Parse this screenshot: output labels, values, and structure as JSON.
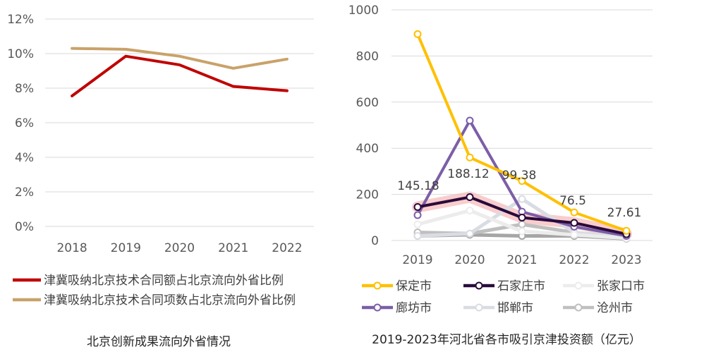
{
  "chart_data": [
    {
      "type": "line",
      "title": "北京创新成果流向外省情况",
      "x": [
        "2018",
        "2019",
        "2020",
        "2021",
        "2022"
      ],
      "ylim": [
        0,
        12
      ],
      "yticks": [
        "0%",
        "2%",
        "4%",
        "6%",
        "8%",
        "10%",
        "12%"
      ],
      "grid": true,
      "legend_position": "bottom",
      "series": [
        {
          "name": "津冀吸纳北京技术合同额占北京流向外省比例",
          "color": "#c00000",
          "values": [
            7.55,
            9.85,
            9.35,
            8.1,
            7.85
          ]
        },
        {
          "name": "津冀吸纳北京技术合同项数占北京流向外省比例",
          "color": "#c9a26a",
          "values": [
            10.3,
            10.25,
            9.85,
            9.15,
            9.68
          ]
        }
      ]
    },
    {
      "type": "line",
      "title": "2019-2023年河北省各市吸引京津投资额（亿元）",
      "x": [
        "2019",
        "2020",
        "2021",
        "2022",
        "2023"
      ],
      "ylim": [
        0,
        1000
      ],
      "yticks": [
        "0",
        "200",
        "400",
        "600",
        "800",
        "1000"
      ],
      "grid": true,
      "legend_position": "bottom",
      "data_labels": [
        "145.18",
        "188.12",
        "99.38",
        "76.5",
        "27.61"
      ],
      "series": [
        {
          "name": "保定市",
          "color": "#ffc000",
          "values": [
            895,
            360,
            258,
            122,
            42
          ]
        },
        {
          "name": "石家庄市",
          "color": "#2a0a3a",
          "values": [
            145.18,
            188.12,
            99.38,
            76.5,
            27.61
          ]
        },
        {
          "name": "张家口市",
          "color": "#ececec",
          "values": [
            70,
            130,
            40,
            25,
            10
          ]
        },
        {
          "name": "廊坊市",
          "color": "#7b5ea7",
          "values": [
            110,
            520,
            125,
            60,
            20
          ]
        },
        {
          "name": "邯郸市",
          "color": "#d9dce3",
          "values": [
            20,
            30,
            180,
            35,
            15
          ]
        },
        {
          "name": "沧州市",
          "color": "#bfbfbf",
          "values": [
            35,
            30,
            70,
            35,
            10
          ]
        },
        {
          "name": "",
          "color": "#a6a6a6",
          "values": [
            20,
            25,
            20,
            20,
            8
          ]
        }
      ]
    }
  ]
}
